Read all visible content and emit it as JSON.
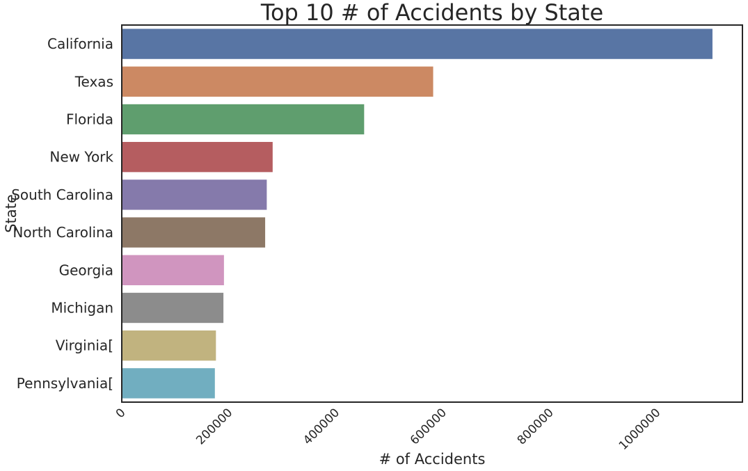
{
  "chart_data": {
    "type": "bar",
    "orientation": "horizontal",
    "title": "Top 10 # of Accidents by State",
    "xlabel": "# of Accidents",
    "ylabel": "State",
    "categories": [
      "California",
      "Texas",
      "Florida",
      "New York",
      "South Carolina",
      "North Carolina",
      "Georgia",
      "Michigan",
      "Virginia[",
      "Pennsylvania["
    ],
    "values": [
      1104000,
      582000,
      453000,
      282000,
      271000,
      268000,
      191000,
      190000,
      176000,
      174000
    ],
    "colors": [
      "#5875a4",
      "#cc8963",
      "#5f9e6e",
      "#b55d60",
      "#857aab",
      "#8d7866",
      "#d095bf",
      "#8c8c8c",
      "#c1b37f",
      "#71aec0"
    ],
    "xticks": [
      0,
      200000,
      400000,
      600000,
      800000,
      1000000
    ],
    "xtick_labels": [
      "0",
      "200000",
      "400000",
      "600000",
      "800000",
      "1000000"
    ],
    "xlim": [
      0,
      1160000
    ],
    "grid": false,
    "legend": "none"
  }
}
